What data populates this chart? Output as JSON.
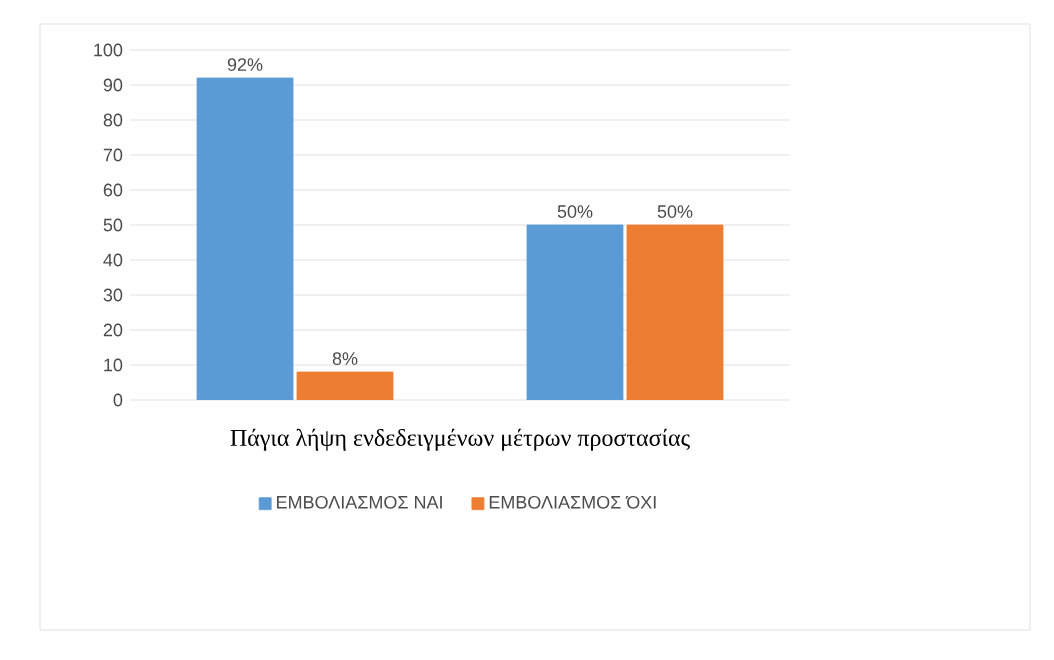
{
  "chart_data": {
    "type": "bar",
    "xlabel": "Πάγια λήψη ενδεδειγμένων μέτρων προστασίας",
    "categories": [
      null,
      null
    ],
    "series": [
      {
        "name": "ΕΜΒΟΛΙΑΣΜΟΣ ΝΑΙ",
        "color": "#5b9bd5",
        "values": [
          92,
          50
        ],
        "value_labels": [
          "92%",
          "50%"
        ]
      },
      {
        "name": "ΕΜΒΟΛΙΑΣΜΟΣ ΌΧΙ",
        "color": "#ed7d31",
        "values": [
          8,
          50
        ],
        "value_labels": [
          "8%",
          "50%"
        ]
      }
    ],
    "ylim": [
      0,
      100
    ],
    "yticks": [
      0,
      10,
      20,
      30,
      40,
      50,
      60,
      70,
      80,
      90,
      100
    ],
    "grid": "y",
    "legend": "bottom"
  }
}
